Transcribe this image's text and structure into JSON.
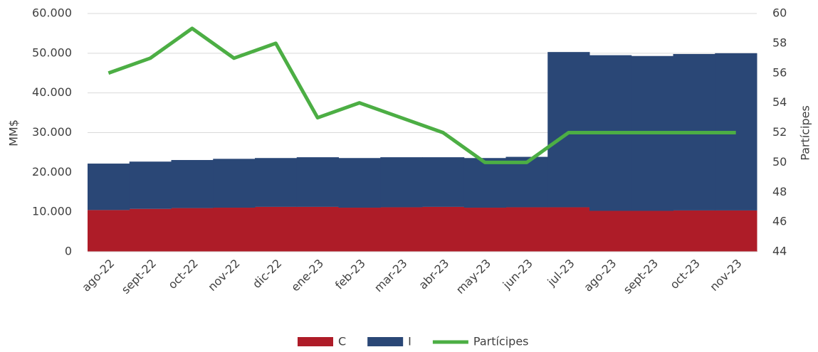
{
  "chart_data": {
    "type": "bar",
    "stacked": true,
    "categories": [
      "ago-22",
      "sept-22",
      "oct-22",
      "nov-22",
      "dic-22",
      "ene-23",
      "feb-23",
      "mar-23",
      "abr-23",
      "may-23",
      "jun-23",
      "jul-23",
      "ago-23",
      "sept-23",
      "oct-23",
      "nov-23"
    ],
    "series": [
      {
        "name": "C",
        "color": "#ae1c28",
        "values": [
          10500,
          10800,
          11000,
          11100,
          11300,
          11300,
          11100,
          11200,
          11300,
          11100,
          11200,
          11200,
          10300,
          10300,
          10400,
          10400
        ]
      },
      {
        "name": "I",
        "color": "#2a4776",
        "values": [
          11700,
          11900,
          12100,
          12300,
          12300,
          12500,
          12500,
          12600,
          12500,
          12500,
          12700,
          39100,
          39200,
          39000,
          39400,
          39600
        ]
      },
      {
        "name": "Partícipes",
        "color": "#4cae44",
        "type": "line",
        "axis": "y2",
        "values": [
          56,
          57,
          59,
          57,
          58,
          53,
          54,
          53,
          52,
          50,
          50,
          52,
          52,
          52,
          52,
          52
        ]
      }
    ],
    "y_label": "MM$",
    "y2_label": "Partícipes",
    "ylim": [
      0,
      60000
    ],
    "yticks": [
      0,
      {
        "value": 10000,
        "label": "10.000"
      },
      {
        "value": 20000,
        "label": "20.000"
      },
      {
        "value": 30000,
        "label": "30.000"
      },
      {
        "value": 40000,
        "label": "40.000"
      },
      {
        "value": 50000,
        "label": "50.000"
      },
      {
        "value": 60000,
        "label": "60.000"
      }
    ],
    "y2lim": [
      44,
      60
    ],
    "y2ticks": [
      44,
      46,
      48,
      50,
      52,
      54,
      56,
      58,
      60
    ],
    "grid": true,
    "legend": "bottom"
  }
}
